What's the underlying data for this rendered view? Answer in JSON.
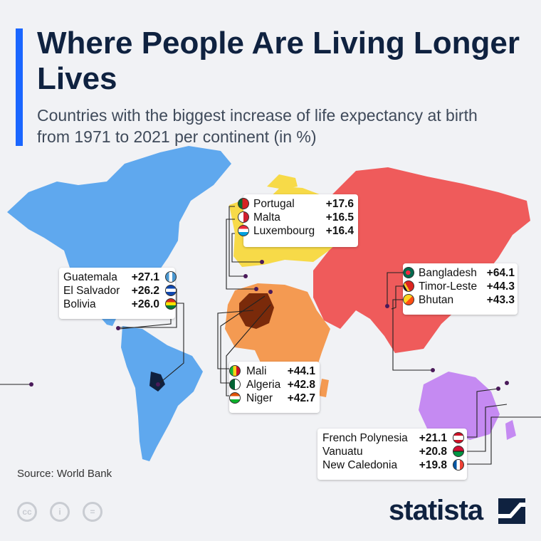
{
  "header": {
    "title": "Where People Are Living Longer Lives",
    "subtitle": "Countries with the biggest increase of life expectancy at birth from 1971 to 2021 per continent (in %)"
  },
  "footer": {
    "source": "Source: World Bank",
    "brand": "statista"
  },
  "colors": {
    "americas": "#5fa8ee",
    "europe": "#f7da48",
    "asia": "#ef5b5b",
    "africa": "#f49a52",
    "oceania": "#c58af2",
    "accent": "#1a66ff"
  },
  "chart_data": {
    "type": "table",
    "title": "Where People Are Living Longer Lives",
    "subtitle": "Countries with the biggest increase of life expectancy at birth from 1971 to 2021 per continent (in %)",
    "groups": [
      {
        "region": "Europe",
        "rows": [
          {
            "country": "Portugal",
            "label": "+17.6",
            "value": 17.6,
            "flag": "portugal-flag"
          },
          {
            "country": "Malta",
            "label": "+16.5",
            "value": 16.5,
            "flag": "malta-flag"
          },
          {
            "country": "Luxembourg",
            "label": "+16.4",
            "value": 16.4,
            "flag": "luxembourg-flag"
          }
        ]
      },
      {
        "region": "Americas",
        "rows": [
          {
            "country": "Guatemala",
            "label": "+27.1",
            "value": 27.1,
            "flag": "guatemala-flag"
          },
          {
            "country": "El Salvador",
            "label": "+26.2",
            "value": 26.2,
            "flag": "el-salvador-flag"
          },
          {
            "country": "Bolivia",
            "label": "+26.0",
            "value": 26.0,
            "flag": "bolivia-flag"
          }
        ]
      },
      {
        "region": "Asia",
        "rows": [
          {
            "country": "Bangladesh",
            "label": "+64.1",
            "value": 64.1,
            "flag": "bangladesh-flag"
          },
          {
            "country": "Timor-Leste",
            "label": "+44.3",
            "value": 44.3,
            "flag": "timor-leste-flag"
          },
          {
            "country": "Bhutan",
            "label": "+43.3",
            "value": 43.3,
            "flag": "bhutan-flag"
          }
        ]
      },
      {
        "region": "Africa",
        "rows": [
          {
            "country": "Mali",
            "label": "+44.1",
            "value": 44.1,
            "flag": "mali-flag"
          },
          {
            "country": "Algeria",
            "label": "+42.8",
            "value": 42.8,
            "flag": "algeria-flag"
          },
          {
            "country": "Niger",
            "label": "+42.7",
            "value": 42.7,
            "flag": "niger-flag"
          }
        ]
      },
      {
        "region": "Oceania",
        "rows": [
          {
            "country": "French Polynesia",
            "label": "+21.1",
            "value": 21.1,
            "flag": "french-polynesia-flag"
          },
          {
            "country": "Vanuatu",
            "label": "+20.8",
            "value": 20.8,
            "flag": "vanuatu-flag"
          },
          {
            "country": "New Caledonia",
            "label": "+19.8",
            "value": 19.8,
            "flag": "new-caledonia-flag"
          }
        ]
      }
    ]
  }
}
